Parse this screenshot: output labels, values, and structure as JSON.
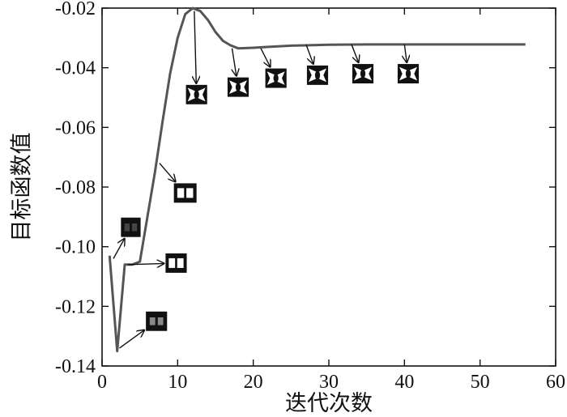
{
  "chart_data": {
    "type": "line",
    "xlabel": "迭代次数",
    "ylabel": "目标函数值",
    "xlim": [
      0,
      60
    ],
    "ylim": [
      -0.14,
      -0.02
    ],
    "x_ticks": [
      "0",
      "10",
      "20",
      "30",
      "40",
      "50",
      "60"
    ],
    "y_ticks": [
      "-0.02",
      "-0.04",
      "-0.06",
      "-0.08",
      "-0.10",
      "-0.12",
      "-0.14"
    ],
    "grid": false,
    "legend": "none",
    "line_color": "#555555",
    "series": [
      {
        "x": [
          1,
          2,
          3,
          4,
          5,
          6,
          7,
          8,
          9,
          10,
          11,
          12,
          13,
          14,
          15,
          16,
          17,
          18,
          20,
          22,
          25,
          30,
          35,
          40,
          45,
          50,
          56
        ],
        "y": [
          -0.103,
          -0.135,
          -0.106,
          -0.106,
          -0.105,
          -0.09,
          -0.075,
          -0.058,
          -0.042,
          -0.03,
          -0.022,
          -0.02,
          -0.021,
          -0.024,
          -0.028,
          -0.031,
          -0.0325,
          -0.0335,
          -0.0333,
          -0.033,
          -0.0326,
          -0.0323,
          -0.0322,
          -0.0322,
          -0.0322,
          -0.0322,
          -0.0322
        ]
      }
    ],
    "annotations": [
      {
        "label": "topology-snapshot-1",
        "x": 1.5,
        "y": -0.104,
        "img_x": 3.8,
        "img_y": -0.0935,
        "img_w": 2.6,
        "img_h": 0.0065,
        "pattern": "dark-bar"
      },
      {
        "label": "topology-snapshot-2",
        "x": 2.3,
        "y": -0.134,
        "img_x": 7.2,
        "img_y": -0.125,
        "img_w": 2.8,
        "img_h": 0.0065,
        "pattern": "dark-bar-gray"
      },
      {
        "label": "topology-snapshot-3",
        "x": 3.4,
        "y": -0.106,
        "img_x": 9.8,
        "img_y": -0.1055,
        "img_w": 2.8,
        "img_h": 0.0065,
        "pattern": "two-holes"
      },
      {
        "label": "topology-snapshot-4",
        "x": 7.6,
        "y": -0.072,
        "img_x": 11.0,
        "img_y": -0.082,
        "img_w": 3.0,
        "img_h": 0.0065,
        "pattern": "two-holes"
      },
      {
        "label": "topology-snapshot-5",
        "x": 12.2,
        "y": -0.021,
        "img_x": 12.5,
        "img_y": -0.049,
        "img_w": 2.8,
        "img_h": 0.0065,
        "pattern": "pinched"
      },
      {
        "label": "topology-snapshot-6",
        "x": 17.2,
        "y": -0.0335,
        "img_x": 18.0,
        "img_y": -0.0465,
        "img_w": 2.8,
        "img_h": 0.0065,
        "pattern": "pinched"
      },
      {
        "label": "topology-snapshot-7",
        "x": 21.0,
        "y": -0.0335,
        "img_x": 23.0,
        "img_y": -0.0435,
        "img_w": 2.8,
        "img_h": 0.0065,
        "pattern": "pinched"
      },
      {
        "label": "topology-snapshot-8",
        "x": 27.0,
        "y": -0.0323,
        "img_x": 28.5,
        "img_y": -0.0425,
        "img_w": 2.8,
        "img_h": 0.0065,
        "pattern": "pinched"
      },
      {
        "label": "topology-snapshot-9",
        "x": 33.0,
        "y": -0.0322,
        "img_x": 34.5,
        "img_y": -0.042,
        "img_w": 2.8,
        "img_h": 0.0065,
        "pattern": "pinched"
      },
      {
        "label": "topology-snapshot-10",
        "x": 40.0,
        "y": -0.0322,
        "img_x": 40.5,
        "img_y": -0.042,
        "img_w": 2.8,
        "img_h": 0.0065,
        "pattern": "pinched"
      }
    ]
  }
}
